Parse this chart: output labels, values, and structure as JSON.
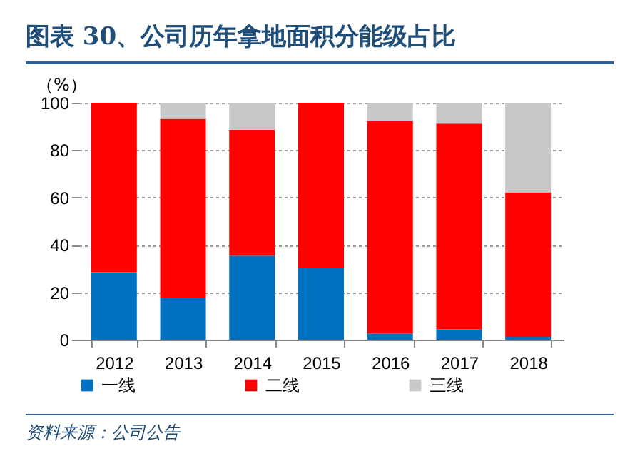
{
  "chart_data": {
    "type": "bar",
    "title": "图表 30、公司历年拿地面积分能级占比",
    "ylabel": "（%）",
    "categories": [
      "2012",
      "2013",
      "2014",
      "2015",
      "2016",
      "2017",
      "2018"
    ],
    "stacked": true,
    "series": [
      {
        "name": "一线",
        "color": "#0070c0",
        "values": [
          28.5,
          17.7,
          35.5,
          30.1,
          2.6,
          4.4,
          1.2
        ]
      },
      {
        "name": "二线",
        "color": "#ff0000",
        "values": [
          71.5,
          75.5,
          53.1,
          69.9,
          89.6,
          86.8,
          61.0
        ]
      },
      {
        "name": "三线",
        "color": "#c8c8c8",
        "values": [
          0,
          6.8,
          11.4,
          0,
          7.8,
          8.8,
          37.8
        ]
      }
    ],
    "ylim": [
      0,
      100
    ],
    "yticks": [
      0,
      20,
      40,
      60,
      80,
      100
    ],
    "grid": "y",
    "legend": "bottom",
    "annotations": [
      "资料来源：公司公告"
    ]
  }
}
